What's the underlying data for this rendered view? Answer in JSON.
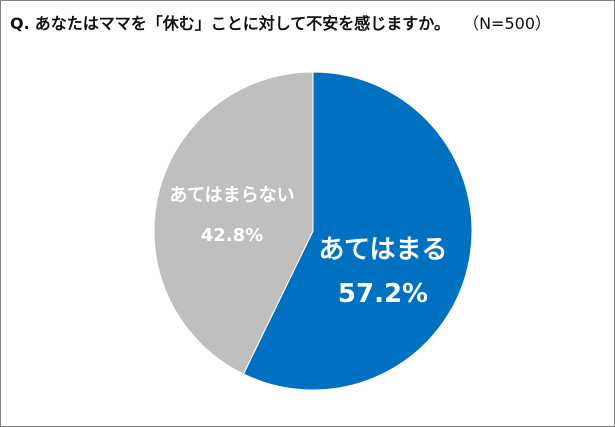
{
  "title": {
    "prefix": "Q.",
    "question": "あなたはママを「休む」ことに対して不安を感じますか。",
    "sample": "（N=500）"
  },
  "colors": {
    "agree": "#0070c0",
    "disagree": "#bfbfbf",
    "border": "#7f7f7f"
  },
  "chart_data": {
    "type": "pie",
    "title": "あなたはママを「休む」ことに対して不安を感じますか。",
    "slices": [
      {
        "label": "あてはまる",
        "value": 57.2,
        "value_label": "57.2%",
        "color": "#0070c0"
      },
      {
        "label": "あてはまらない",
        "value": 42.8,
        "value_label": "42.8%",
        "color": "#bfbfbf"
      }
    ],
    "start_angle": "12 o'clock",
    "direction": "clockwise"
  }
}
